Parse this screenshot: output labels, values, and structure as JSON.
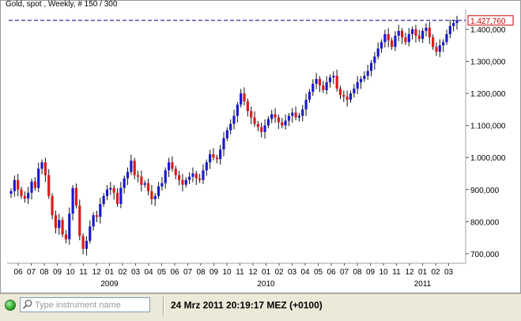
{
  "title": "Gold, spot , Weekly, # 150 / 300",
  "status": {
    "search_placeholder": "Type instrument name",
    "datetime": "24 Mrz 2011 20:19:17  MEZ (+0100)"
  },
  "chart_data": {
    "type": "candlestick",
    "title": "Gold, spot , Weekly, # 150 / 300",
    "y_ticks": [
      700000,
      800000,
      900000,
      1000000,
      1100000,
      1200000,
      1300000,
      1400000
    ],
    "y_tick_labels": [
      "700,000",
      "800,000",
      "900,000",
      "1.000,000",
      "1.100,000",
      "1.200,000",
      "1.300,000",
      "1.400,000"
    ],
    "ylim": [
      670000,
      1447000
    ],
    "last_price": 1427760,
    "last_price_label": "1.427,760",
    "month_labels": [
      "06",
      "07",
      "08",
      "09",
      "10",
      "11",
      "12",
      "01",
      "02",
      "03",
      "04",
      "05",
      "06",
      "07",
      "08",
      "09",
      "10",
      "11",
      "12",
      "01",
      "02",
      "03",
      "04",
      "05",
      "06",
      "07",
      "08",
      "09",
      "10",
      "11",
      "12",
      "01",
      "02",
      "03"
    ],
    "year_labels": [
      {
        "label": "2009",
        "month_index": 7
      },
      {
        "label": "2010",
        "month_index": 19
      },
      {
        "label": "2011",
        "month_index": 31
      }
    ],
    "up_color": "#1a1acc",
    "down_color": "#dd1a1a",
    "price_line_color": "#00008b",
    "closes": [
      895000,
      930000,
      900000,
      880000,
      872000,
      890000,
      925000,
      905000,
      965000,
      985000,
      945000,
      880000,
      820000,
      780000,
      805000,
      760000,
      745000,
      825000,
      905000,
      850000,
      755000,
      715000,
      740000,
      785000,
      820000,
      815000,
      855000,
      880000,
      900000,
      905000,
      890000,
      855000,
      905000,
      935000,
      955000,
      990000,
      945000,
      940000,
      915000,
      920000,
      895000,
      870000,
      880000,
      910000,
      920000,
      960000,
      985000,
      965000,
      945000,
      930000,
      915000,
      930000,
      940000,
      950000,
      935000,
      930000,
      960000,
      985000,
      1010000,
      1000000,
      995000,
      1025000,
      1060000,
      1085000,
      1105000,
      1130000,
      1165000,
      1200000,
      1175000,
      1145000,
      1125000,
      1105000,
      1095000,
      1080000,
      1100000,
      1120000,
      1135000,
      1125000,
      1110000,
      1100000,
      1115000,
      1130000,
      1140000,
      1125000,
      1130000,
      1150000,
      1180000,
      1205000,
      1230000,
      1245000,
      1225000,
      1210000,
      1235000,
      1250000,
      1255000,
      1215000,
      1195000,
      1190000,
      1180000,
      1200000,
      1215000,
      1235000,
      1245000,
      1255000,
      1270000,
      1295000,
      1315000,
      1340000,
      1360000,
      1385000,
      1365000,
      1345000,
      1380000,
      1395000,
      1375000,
      1360000,
      1385000,
      1400000,
      1380000,
      1370000,
      1395000,
      1405000,
      1375000,
      1345000,
      1330000,
      1350000,
      1360000,
      1385000,
      1410000,
      1420000,
      1428000
    ]
  }
}
